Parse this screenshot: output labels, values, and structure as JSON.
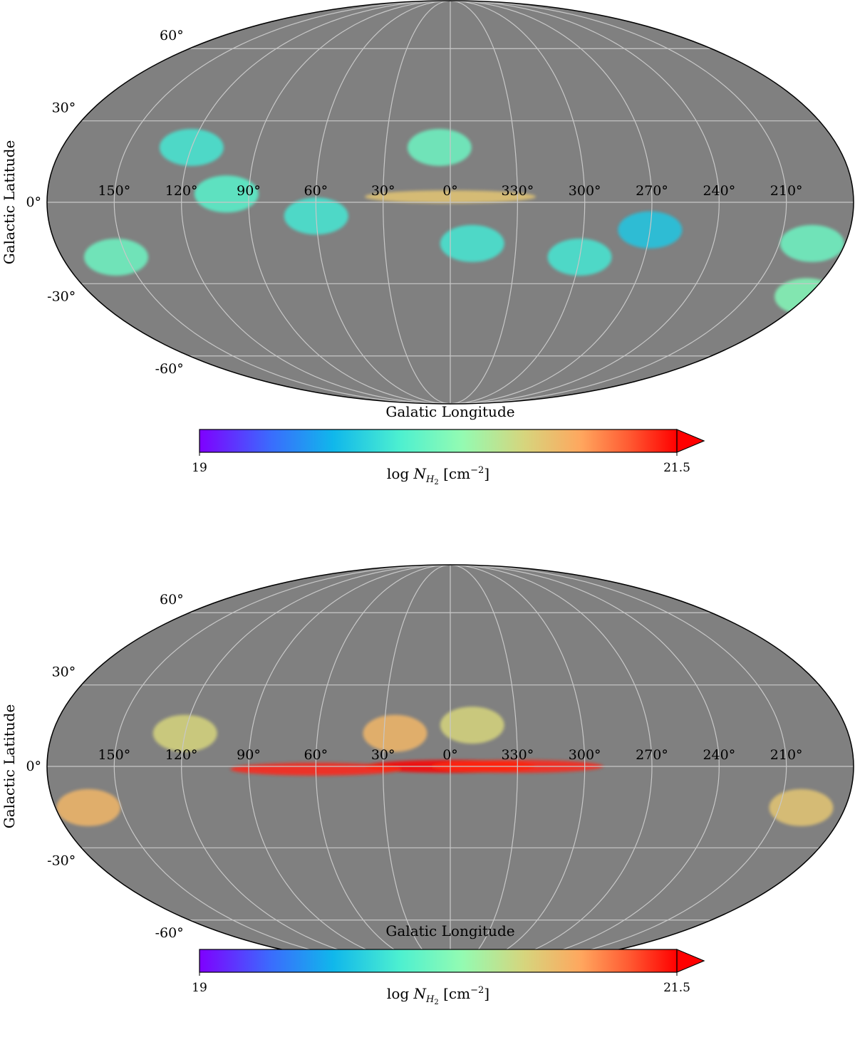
{
  "chart_data": [
    {
      "type": "heatmap",
      "projection": "Mollweide",
      "xlabel": "Galatic Longitude",
      "ylabel": "Galactic Latitude",
      "lon_ticks": [
        "150°",
        "120°",
        "90°",
        "60°",
        "30°",
        "0°",
        "330°",
        "300°",
        "270°",
        "240°",
        "210°"
      ],
      "lat_ticks": [
        "60°",
        "30°",
        "0°",
        "-30°",
        "-60°"
      ],
      "colorbar": {
        "label": "log N_H2 [cm^-2]",
        "min_label": "19",
        "max_label": "21.5",
        "min": 19,
        "max": 21.5,
        "colormap": "rainbow",
        "extend": "max"
      },
      "background_color": "#808080",
      "grid": true,
      "features": [
        {
          "lon": 180,
          "lat": -35,
          "value": 20.3
        },
        {
          "lon": 155,
          "lat": -20,
          "value": 20.2
        },
        {
          "lon": 120,
          "lat": 20,
          "value": 20.0
        },
        {
          "lon": 100,
          "lat": 3,
          "value": 20.1
        },
        {
          "lon": 60,
          "lat": -5,
          "value": 20.0
        },
        {
          "lon": 5,
          "lat": 20,
          "value": 20.2
        },
        {
          "lon": 0,
          "lat": 2,
          "value": 20.8
        },
        {
          "lon": 350,
          "lat": -15,
          "value": 20.0
        },
        {
          "lon": 300,
          "lat": -20,
          "value": 20.0
        },
        {
          "lon": 270,
          "lat": -10,
          "value": 19.8
        },
        {
          "lon": 195,
          "lat": -15,
          "value": 20.2
        }
      ]
    },
    {
      "type": "heatmap",
      "projection": "Mollweide",
      "xlabel": "Galatic Longitude",
      "ylabel": "Galactic Latitude",
      "lon_ticks": [
        "150°",
        "120°",
        "90°",
        "60°",
        "30°",
        "0°",
        "330°",
        "300°",
        "270°",
        "240°",
        "210°"
      ],
      "lat_ticks": [
        "60°",
        "30°",
        "0°",
        "-30°",
        "-60°"
      ],
      "colorbar": {
        "label": "log N_H2 [cm^-2]",
        "min_label": "19",
        "max_label": "21.5",
        "min": 19,
        "max": 21.5,
        "colormap": "rainbow",
        "extend": "max"
      },
      "background_color": "#808080",
      "grid": true,
      "features": [
        {
          "lon": 0,
          "lat": 0,
          "value": 21.5
        },
        {
          "lon": 60,
          "lat": -1,
          "value": 21.4
        },
        {
          "lon": 330,
          "lat": 0,
          "value": 21.4
        },
        {
          "lon": 25,
          "lat": 12,
          "value": 20.9
        },
        {
          "lon": 350,
          "lat": 15,
          "value": 20.7
        },
        {
          "lon": 120,
          "lat": 12,
          "value": 20.7
        },
        {
          "lon": 165,
          "lat": -15,
          "value": 20.9
        },
        {
          "lon": 200,
          "lat": -15,
          "value": 20.8
        }
      ]
    }
  ]
}
